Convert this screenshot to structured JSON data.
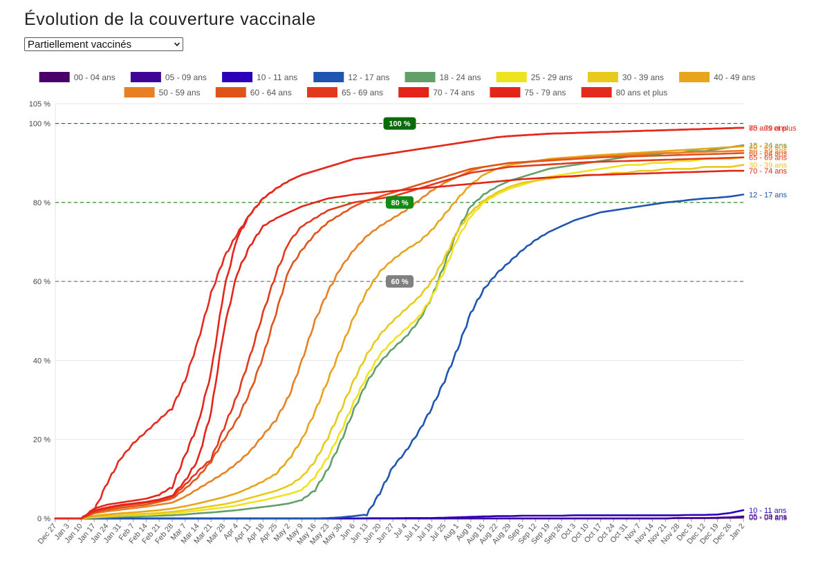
{
  "page": {
    "title": "Évolution de la couverture vaccinale",
    "select": {
      "value": "Partiellement vaccinés",
      "icon": "chevron-down-icon"
    }
  },
  "chart_data": {
    "type": "line",
    "title": "Évolution de la couverture vaccinale",
    "xlabel": "",
    "ylabel": "",
    "x_unit": "week",
    "categories": [
      "Dec 27",
      "Jan 3",
      "Jan 10",
      "Jan 17",
      "Jan 24",
      "Jan 31",
      "Feb 7",
      "Feb 14",
      "Feb 21",
      "Feb 28",
      "Mar 7",
      "Mar 14",
      "Mar 21",
      "Mar 28",
      "Apr 4",
      "Apr 11",
      "Apr 18",
      "Apr 25",
      "May 2",
      "May 9",
      "May 16",
      "May 23",
      "May 30",
      "Jun 6",
      "Jun 13",
      "Jun 20",
      "Jun 27",
      "Jul 4",
      "Jul 11",
      "Jul 18",
      "Jul 25",
      "Aug 1",
      "Aug 8",
      "Aug 15",
      "Aug 22",
      "Aug 29",
      "Sep 5",
      "Sep 12",
      "Sep 19",
      "Sep 26",
      "Oct 3",
      "Oct 10",
      "Oct 17",
      "Oct 24",
      "Oct 31",
      "Nov 7",
      "Nov 14",
      "Nov 21",
      "Nov 28",
      "Dec 5",
      "Dec 12",
      "Dec 19",
      "Dec 26",
      "Jan 2"
    ],
    "ylim": [
      0,
      105
    ],
    "y_ticks": [
      0,
      20,
      40,
      60,
      80,
      100,
      105
    ],
    "y_tick_labels": [
      "0 %",
      "20 %",
      "40 %",
      "60 %",
      "80 %",
      "100 %",
      "105 %"
    ],
    "grid": true,
    "legend_position": "top",
    "thresholds": [
      {
        "value": 100,
        "label": "100 %",
        "line_color": "#1e6a1e",
        "badge_color": "#0a6b0a"
      },
      {
        "value": 80,
        "label": "80 %",
        "line_color": "#2e8b2e",
        "badge_color": "#138a13"
      },
      {
        "value": 60,
        "label": "60 %",
        "line_color": "#777777",
        "badge_color": "#808080"
      }
    ],
    "series": [
      {
        "name": "00 - 04 ans",
        "color": "#4b0069",
        "end_label": "00 - 04 ans",
        "values": [
          0,
          0,
          0,
          0,
          0,
          0,
          0,
          0,
          0,
          0,
          0,
          0,
          0,
          0,
          0,
          0,
          0,
          0,
          0,
          0,
          0,
          0,
          0,
          0,
          0,
          0,
          0,
          0,
          0,
          0,
          0,
          0,
          0,
          0,
          0,
          0,
          0,
          0,
          0,
          0,
          0,
          0,
          0,
          0,
          0,
          0,
          0,
          0,
          0.1,
          0.1,
          0.1,
          0.1,
          0.2,
          0.3
        ]
      },
      {
        "name": "05 - 09 ans",
        "color": "#3f0596",
        "end_label": "05 - 09 ans",
        "values": [
          0,
          0,
          0,
          0,
          0,
          0,
          0,
          0,
          0,
          0,
          0,
          0,
          0,
          0,
          0,
          0,
          0,
          0,
          0,
          0,
          0,
          0,
          0,
          0,
          0,
          0,
          0,
          0,
          0,
          0,
          0,
          0,
          0,
          0,
          0,
          0,
          0,
          0,
          0,
          0,
          0,
          0,
          0,
          0,
          0,
          0,
          0,
          0,
          0.1,
          0.1,
          0.1,
          0.2,
          0.3,
          0.5
        ]
      },
      {
        "name": "10 - 11 ans",
        "color": "#2b00b8",
        "end_label": "10 - 11 ans",
        "values": [
          0,
          0,
          0,
          0,
          0,
          0,
          0,
          0,
          0,
          0,
          0,
          0,
          0,
          0,
          0,
          0,
          0,
          0,
          0,
          0,
          0,
          0,
          0,
          0,
          0.05,
          0.05,
          0.05,
          0.1,
          0.1,
          0.1,
          0.2,
          0.3,
          0.4,
          0.5,
          0.6,
          0.6,
          0.7,
          0.7,
          0.7,
          0.7,
          0.8,
          0.8,
          0.8,
          0.8,
          0.8,
          0.8,
          0.8,
          0.8,
          0.8,
          0.9,
          0.9,
          1.0,
          1.4,
          2.1
        ]
      },
      {
        "name": "12 - 17 ans",
        "color": "#1f55b0",
        "end_label": "12 - 17 ans",
        "values": [
          0,
          0,
          0,
          0,
          0,
          0,
          0,
          0,
          0,
          0,
          0,
          0,
          0,
          0,
          0,
          0,
          0,
          0,
          0,
          0,
          0,
          0.1,
          0.3,
          0.6,
          1.0,
          6.5,
          13,
          17,
          22,
          28,
          35,
          43,
          52,
          58,
          62,
          65,
          68,
          70.5,
          72.5,
          74,
          75.5,
          76.5,
          77.5,
          78,
          78.5,
          79,
          79.5,
          80,
          80.3,
          80.7,
          81,
          81.2,
          81.5,
          82
        ]
      },
      {
        "name": "18 - 24 ans",
        "color": "#62a06a",
        "end_label": "18 - 24 ans",
        "values": [
          0,
          0,
          0,
          0.2,
          0.3,
          0.4,
          0.5,
          0.6,
          0.7,
          0.8,
          1.0,
          1.3,
          1.5,
          1.8,
          2.1,
          2.5,
          2.9,
          3.3,
          3.8,
          4.7,
          7.2,
          12.5,
          19.5,
          27.5,
          34.5,
          39.5,
          43,
          46,
          50,
          56,
          64.5,
          73,
          79,
          82,
          84,
          85.5,
          86.5,
          87.5,
          88.5,
          89,
          89.5,
          90,
          90.5,
          91,
          91.5,
          92,
          92,
          92.5,
          92.5,
          93,
          93,
          93.5,
          94,
          94.5
        ]
      },
      {
        "name": "25 - 29 ans",
        "color": "#efe31e",
        "end_label": "",
        "values": [
          0,
          0,
          0,
          0.3,
          0.5,
          0.7,
          0.8,
          0.9,
          1.1,
          1.3,
          1.6,
          2.0,
          2.4,
          2.8,
          3.3,
          4.0,
          4.6,
          5.4,
          6.2,
          7.2,
          10.5,
          15.5,
          22,
          29.5,
          36,
          41.5,
          45,
          48,
          51,
          56,
          63,
          71,
          76.5,
          80,
          82,
          83.5,
          84.5,
          85.5,
          86.5,
          87,
          87.5,
          88,
          88.5,
          89,
          89.5,
          89.5,
          90,
          90,
          90.5,
          90.5,
          91,
          91,
          91,
          91.5
        ]
      },
      {
        "name": "30 - 39 ans",
        "color": "#e8c91c",
        "end_label": "30 - 39 ans",
        "values": [
          0,
          0,
          0,
          0.4,
          0.6,
          0.8,
          1.0,
          1.2,
          1.4,
          1.7,
          2.1,
          2.6,
          3.1,
          3.6,
          4.3,
          5.2,
          6.1,
          7.0,
          8.3,
          10.5,
          14.5,
          20.5,
          27.5,
          35,
          41.5,
          46.5,
          50,
          53,
          56,
          60,
          66,
          73,
          77.5,
          80.5,
          82.5,
          84,
          85,
          85.5,
          86,
          86.5,
          86.5,
          87,
          87,
          87.5,
          87.5,
          88,
          88,
          88.5,
          88.5,
          88.5,
          89,
          89,
          89,
          89.5
        ]
      },
      {
        "name": "40 - 49 ans",
        "color": "#e6a51a",
        "end_label": "40 - 49 ans",
        "values": [
          0,
          0,
          0,
          0.7,
          1.0,
          1.3,
          1.5,
          1.8,
          2.1,
          2.5,
          3.1,
          3.8,
          4.6,
          5.4,
          6.4,
          7.8,
          9.4,
          11.3,
          15,
          20,
          27,
          35,
          43,
          51,
          57.5,
          62.5,
          65.5,
          68,
          70,
          73,
          77,
          81,
          84.5,
          87,
          88.5,
          89.5,
          90,
          90.5,
          91,
          91.3,
          91.5,
          91.8,
          92,
          92.2,
          92.4,
          92.6,
          92.8,
          93,
          93.2,
          93.4,
          93.6,
          93.8,
          94,
          94.2
        ]
      },
      {
        "name": "50 - 59 ans",
        "color": "#e87f20",
        "end_label": "50 - 59 ans",
        "values": [
          0,
          0,
          0,
          1.3,
          1.8,
          2.2,
          2.6,
          3.0,
          3.5,
          4.0,
          5.5,
          7.5,
          9.5,
          11.5,
          14,
          17,
          21,
          25,
          31,
          40,
          50,
          57.5,
          63.5,
          68,
          71.5,
          74,
          76,
          78,
          80.5,
          83,
          85,
          86.5,
          88,
          89,
          89.5,
          90,
          90.2,
          90.5,
          90.8,
          91,
          91.2,
          91.4,
          91.6,
          91.8,
          92,
          92.2,
          92.4,
          92.5,
          92.6,
          92.7,
          92.8,
          92.9,
          93,
          93.1
        ]
      },
      {
        "name": "60 - 64 ans",
        "color": "#e0541a",
        "end_label": "60 - 64 ans",
        "values": [
          0,
          0,
          0,
          1.5,
          2.2,
          2.7,
          3.1,
          3.5,
          4.2,
          5.0,
          7.5,
          10.5,
          14.5,
          20,
          25,
          32,
          41,
          52,
          63,
          68,
          72,
          75,
          77,
          79,
          80.5,
          81.5,
          82.5,
          83.5,
          84.5,
          85.5,
          86.5,
          87.5,
          88.5,
          89,
          89.5,
          90,
          90.2,
          90.4,
          90.6,
          90.8,
          91,
          91.2,
          91.4,
          91.5,
          91.6,
          91.7,
          91.8,
          91.9,
          92,
          92.1,
          92.2,
          92.3,
          92.4,
          92.5
        ]
      },
      {
        "name": "65 - 69 ans",
        "color": "#e2391c",
        "end_label": "65 - 69 ans",
        "values": [
          0,
          0,
          0,
          1.8,
          2.6,
          3.2,
          3.6,
          4.0,
          4.6,
          5.5,
          8.5,
          12,
          15,
          23,
          31,
          41,
          52,
          62,
          70,
          74,
          76,
          78,
          79,
          80,
          80.5,
          81,
          81.5,
          82.5,
          83.5,
          84.5,
          85.5,
          86.5,
          87.5,
          88,
          88.5,
          89,
          89.2,
          89.4,
          89.6,
          89.8,
          90,
          90.2,
          90.3,
          90.4,
          90.5,
          90.6,
          90.7,
          90.8,
          90.9,
          91,
          91.1,
          91.2,
          91.3,
          91.4
        ]
      },
      {
        "name": "70 - 74 ans",
        "color": "#e42419",
        "end_label": "70 - 74 ans",
        "values": [
          0,
          0,
          0,
          2.0,
          2.8,
          3.4,
          3.8,
          4.2,
          4.8,
          5.8,
          9.5,
          15,
          27,
          48,
          62,
          69,
          74,
          76,
          77.5,
          79,
          80,
          81,
          81.5,
          82,
          82.3,
          82.6,
          82.9,
          83.2,
          83.5,
          83.8,
          84.1,
          84.4,
          84.7,
          85,
          85.3,
          85.6,
          85.9,
          86.1,
          86.3,
          86.5,
          86.7,
          86.9,
          87,
          87.1,
          87.2,
          87.3,
          87.4,
          87.5,
          87.6,
          87.7,
          87.8,
          87.9,
          88,
          88
        ]
      },
      {
        "name": "75 - 79 ans",
        "color": "#e2261c",
        "end_label": "75 - 79 ans",
        "values": [
          0,
          0,
          0,
          2.5,
          3.5,
          4.0,
          4.5,
          5.0,
          6.0,
          8.0,
          16,
          24,
          37,
          58,
          71,
          77,
          81,
          83.5,
          85.5,
          87,
          88,
          89,
          90,
          91,
          91.5,
          92,
          92.5,
          93,
          93.5,
          94,
          94.5,
          95,
          95.5,
          96,
          96.5,
          96.8,
          97,
          97.2,
          97.4,
          97.5,
          97.6,
          97.7,
          97.8,
          97.9,
          98,
          98.1,
          98.2,
          98.3,
          98.4,
          98.5,
          98.6,
          98.7,
          98.8,
          98.9
        ]
      },
      {
        "name": "80 ans et plus",
        "color": "#e42a1c",
        "end_label": "80 ans et plus",
        "values": [
          0,
          0,
          0,
          2.0,
          9,
          15,
          19,
          22,
          25,
          28,
          35,
          45,
          57,
          66,
          72,
          77,
          81,
          83.5,
          85.5,
          87,
          88,
          89,
          90,
          91,
          91.5,
          92,
          92.5,
          93,
          93.5,
          94,
          94.5,
          95,
          95.5,
          96,
          96.5,
          96.8,
          97,
          97.2,
          97.4,
          97.5,
          97.6,
          97.7,
          97.8,
          97.9,
          98,
          98.1,
          98.2,
          98.3,
          98.4,
          98.5,
          98.6,
          98.7,
          98.8,
          98.9
        ]
      }
    ]
  }
}
